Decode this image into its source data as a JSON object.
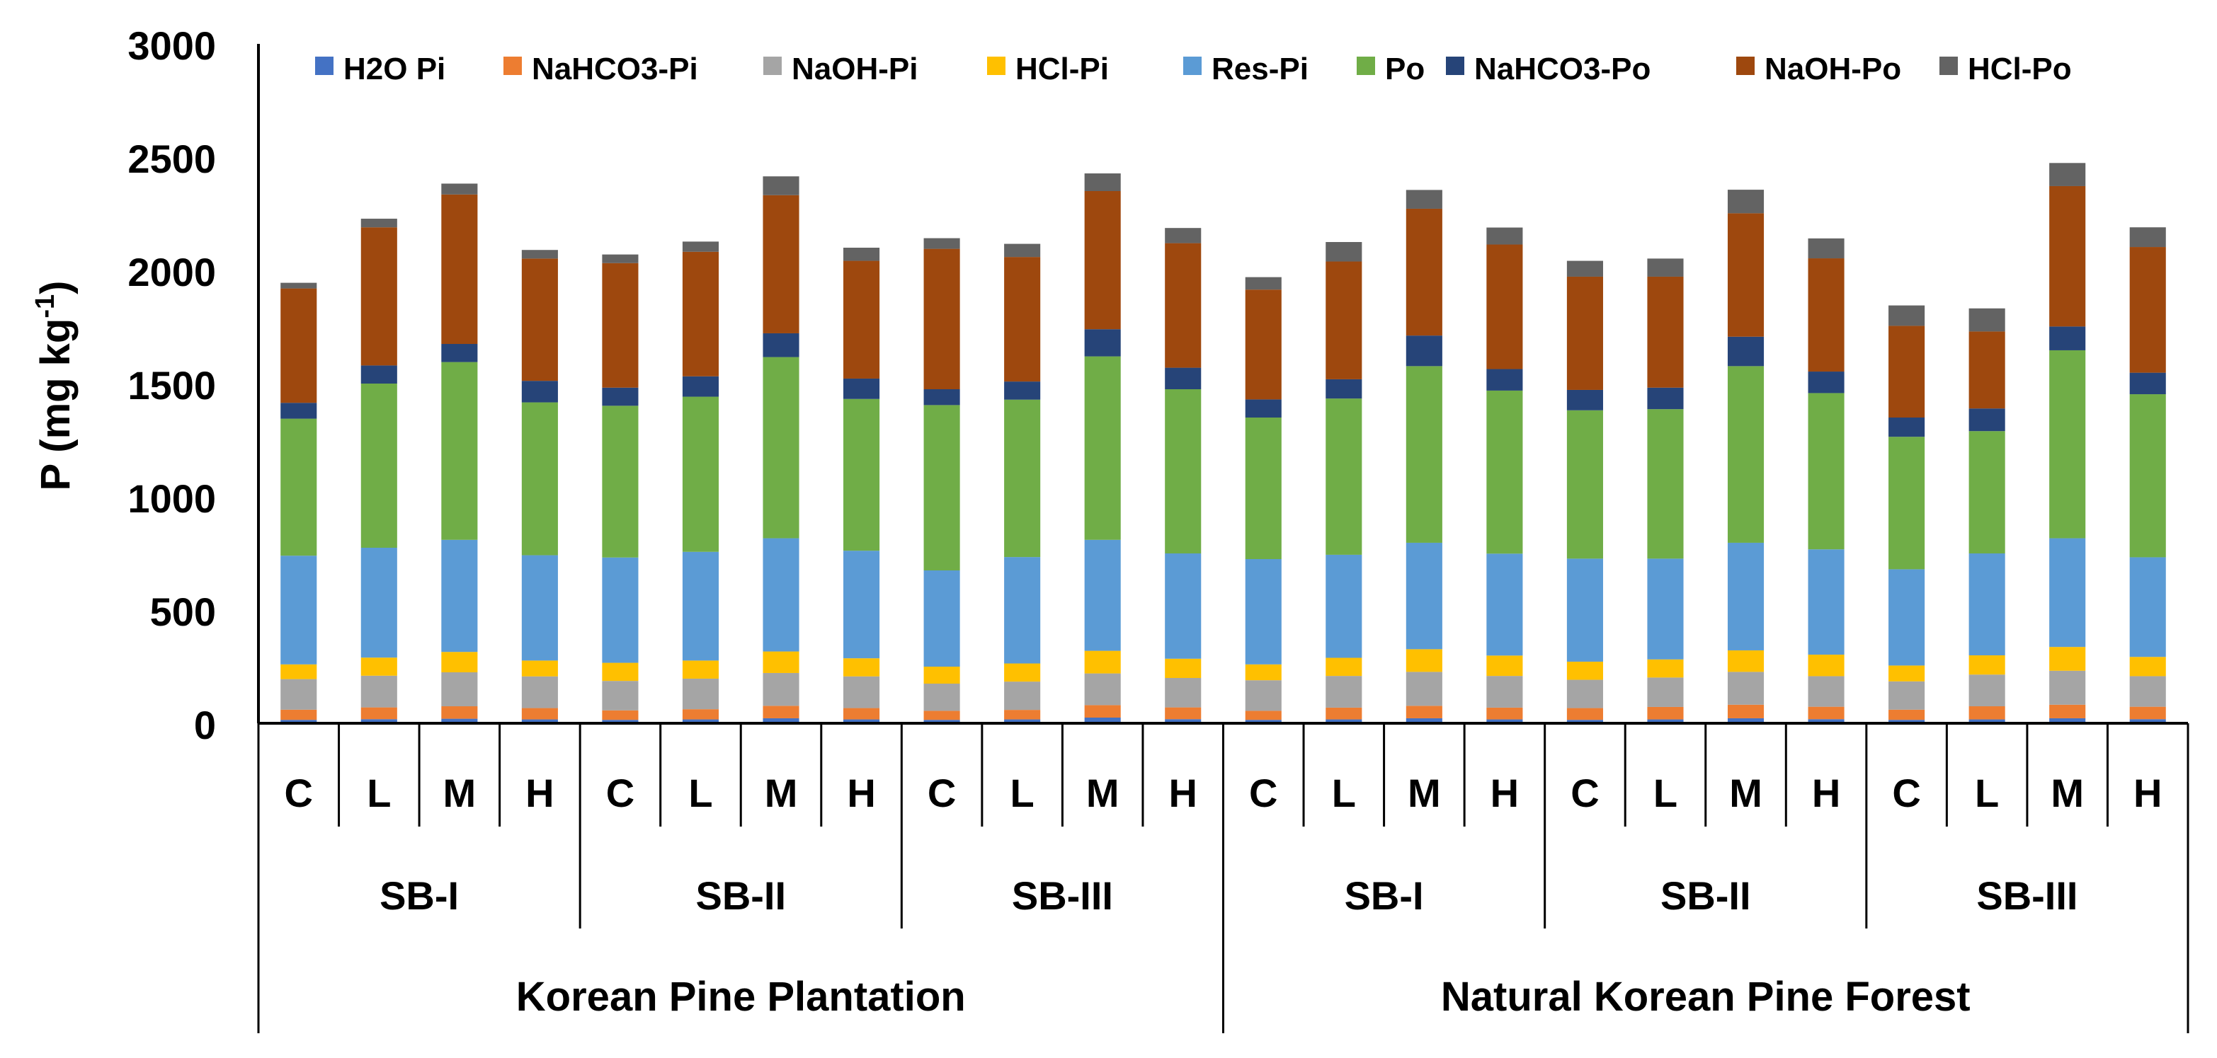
{
  "chart_data": {
    "type": "bar",
    "stacked": true,
    "ylabel": "P (mg kg",
    "ylabel_sup": "-1",
    "ylabel_close": ")",
    "ylim": [
      0,
      3000
    ],
    "yticks": [
      0,
      500,
      1000,
      1500,
      2000,
      2500,
      3000
    ],
    "grid": false,
    "legend_position": "top",
    "x_levels": {
      "treatments": [
        "C",
        "L",
        "M",
        "H"
      ],
      "slopes": [
        "SB-I",
        "SB-II",
        "SB-III"
      ],
      "forests": [
        "Korean Pine Plantation",
        "Natural Korean Pine Forest"
      ]
    },
    "categories": [
      "Korean Pine Plantation / SB-I / C",
      "Korean Pine Plantation / SB-I / L",
      "Korean Pine Plantation / SB-I / M",
      "Korean Pine Plantation / SB-I / H",
      "Korean Pine Plantation / SB-II / C",
      "Korean Pine Plantation / SB-II / L",
      "Korean Pine Plantation / SB-II / M",
      "Korean Pine Plantation / SB-II / H",
      "Korean Pine Plantation / SB-III / C",
      "Korean Pine Plantation / SB-III / L",
      "Korean Pine Plantation / SB-III / M",
      "Korean Pine Plantation / SB-III / H",
      "Natural Korean Pine Forest / SB-I / C",
      "Natural Korean Pine Forest / SB-I / L",
      "Natural Korean Pine Forest / SB-I / M",
      "Natural Korean Pine Forest / SB-I / H",
      "Natural Korean Pine Forest / SB-II / C",
      "Natural Korean Pine Forest / SB-II / L",
      "Natural Korean Pine Forest / SB-II / M",
      "Natural Korean Pine Forest / SB-II / H",
      "Natural Korean Pine Forest / SB-III / C",
      "Natural Korean Pine Forest / SB-III / L",
      "Natural Korean Pine Forest / SB-III / M",
      "Natural Korean Pine Forest / SB-III / H"
    ],
    "series": [
      {
        "name": "H2O Pi",
        "color": "#4472C4",
        "values": [
          15,
          18,
          20,
          17,
          15,
          17,
          22,
          17,
          15,
          17,
          25,
          18,
          15,
          17,
          22,
          17,
          15,
          17,
          22,
          18,
          15,
          17,
          22,
          18
        ]
      },
      {
        "name": "NaHCO3-Pi",
        "color": "#ED7D31",
        "values": [
          45,
          52,
          55,
          50,
          42,
          45,
          55,
          50,
          40,
          42,
          55,
          52,
          40,
          52,
          55,
          52,
          52,
          55,
          60,
          55,
          45,
          58,
          60,
          55
        ]
      },
      {
        "name": "NaOH-Pi",
        "color": "#A5A5A5",
        "values": [
          135,
          140,
          150,
          140,
          130,
          135,
          145,
          140,
          120,
          125,
          140,
          130,
          135,
          140,
          150,
          140,
          125,
          130,
          145,
          135,
          125,
          140,
          150,
          135
        ]
      },
      {
        "name": "HCl-Pi",
        "color": "#FFC000",
        "values": [
          65,
          80,
          90,
          70,
          80,
          80,
          95,
          80,
          75,
          80,
          100,
          85,
          70,
          80,
          100,
          90,
          80,
          80,
          95,
          95,
          70,
          85,
          105,
          85
        ]
      },
      {
        "name": "Res-Pi",
        "color": "#5B9BD5",
        "values": [
          480,
          485,
          495,
          465,
          465,
          480,
          500,
          475,
          425,
          470,
          490,
          465,
          465,
          455,
          470,
          450,
          455,
          445,
          475,
          465,
          425,
          450,
          480,
          440
        ]
      },
      {
        "name": "Po",
        "color": "#70AD47",
        "values": [
          605,
          725,
          785,
          675,
          670,
          685,
          800,
          670,
          730,
          695,
          810,
          725,
          625,
          690,
          780,
          720,
          655,
          660,
          780,
          690,
          585,
          540,
          830,
          720
        ]
      },
      {
        "name": "NaHCO3-Po",
        "color": "#264478",
        "values": [
          70,
          80,
          80,
          95,
          80,
          90,
          105,
          90,
          70,
          80,
          120,
          95,
          80,
          85,
          135,
          95,
          90,
          95,
          130,
          95,
          85,
          100,
          105,
          95
        ]
      },
      {
        "name": "NaOH-Po",
        "color": "#9E480E",
        "values": [
          505,
          610,
          660,
          540,
          550,
          550,
          610,
          520,
          620,
          550,
          610,
          550,
          485,
          520,
          560,
          550,
          500,
          490,
          545,
          500,
          405,
          340,
          620,
          555
        ]
      },
      {
        "name": "HCl-Po",
        "color": "#636363",
        "values": [
          25,
          38,
          48,
          38,
          38,
          45,
          83,
          58,
          47,
          58,
          78,
          67,
          55,
          86,
          83,
          75,
          70,
          80,
          104,
          88,
          90,
          102,
          102,
          87
        ]
      }
    ]
  }
}
